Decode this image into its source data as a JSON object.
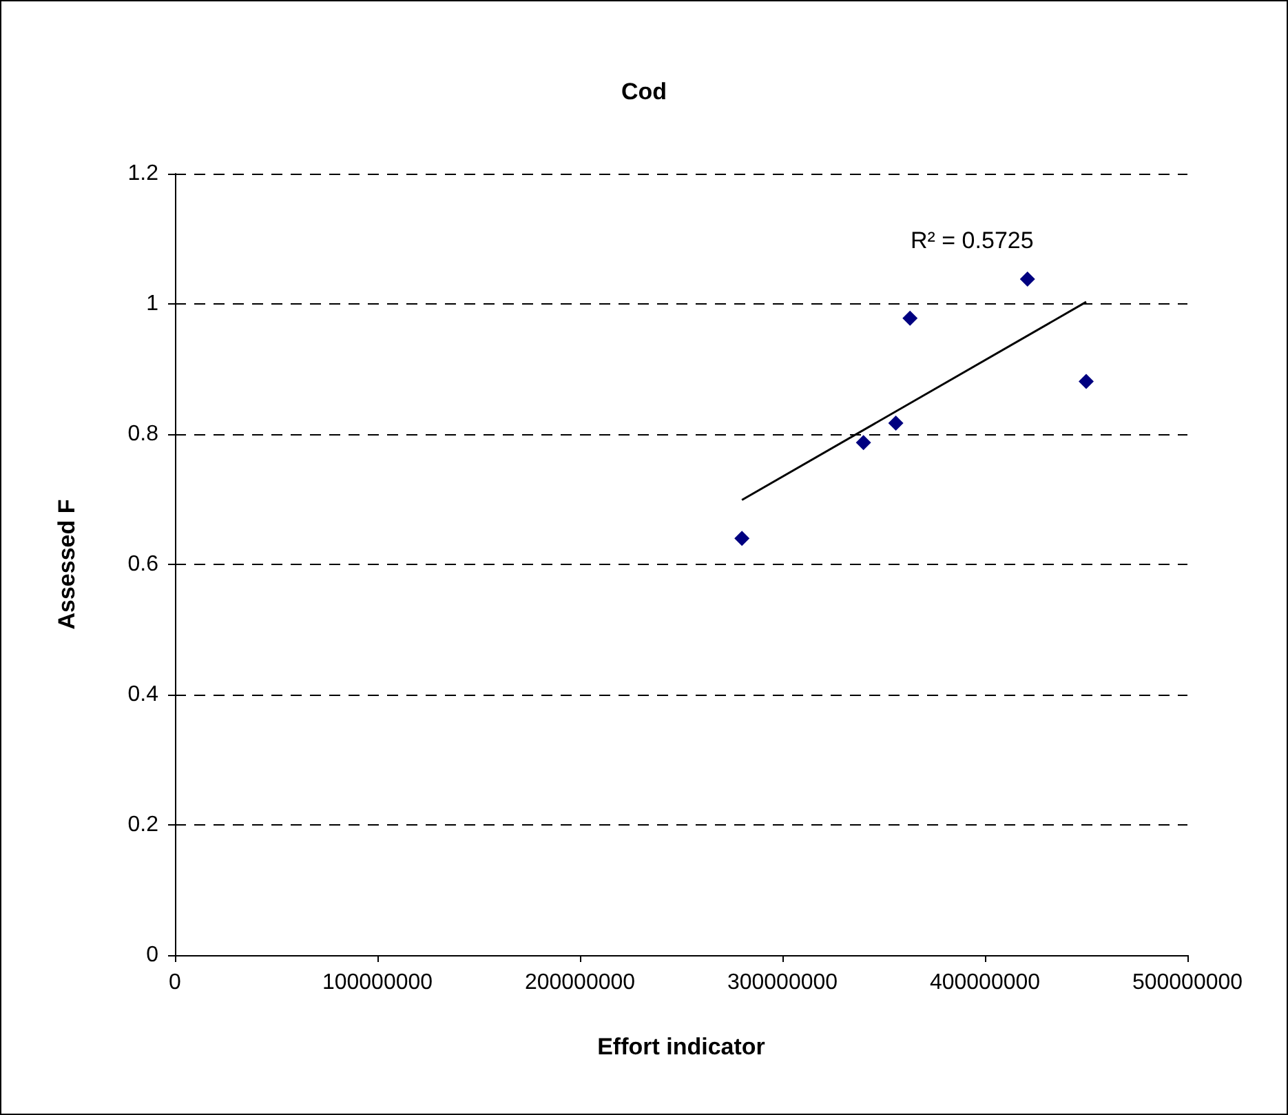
{
  "chart_data": {
    "type": "scatter",
    "title": "Cod",
    "xlabel": "Effort indicator",
    "ylabel": "Assessed F",
    "annotations": [
      "R² = 0.5725"
    ],
    "x": [
      280000000,
      340000000,
      356000000,
      363000000,
      421000000,
      450000000
    ],
    "series": [
      {
        "color": "#000080",
        "marker": "diamond",
        "values": [
          0.64,
          0.787,
          0.817,
          0.978,
          1.038,
          0.881
        ]
      },
      {
        "type": "line",
        "color": "#000000",
        "marker": "none",
        "x": [
          280000000,
          450000000
        ],
        "values": [
          0.699,
          1.003
        ]
      }
    ],
    "xlim": [
      0,
      500000000
    ],
    "xticks": [
      0,
      100000000,
      200000000,
      300000000,
      400000000,
      500000000
    ],
    "ylim": [
      0,
      1.2
    ],
    "yticks": [
      0,
      0.2,
      0.4,
      0.6,
      0.8,
      1,
      1.2
    ],
    "grid": "y"
  }
}
